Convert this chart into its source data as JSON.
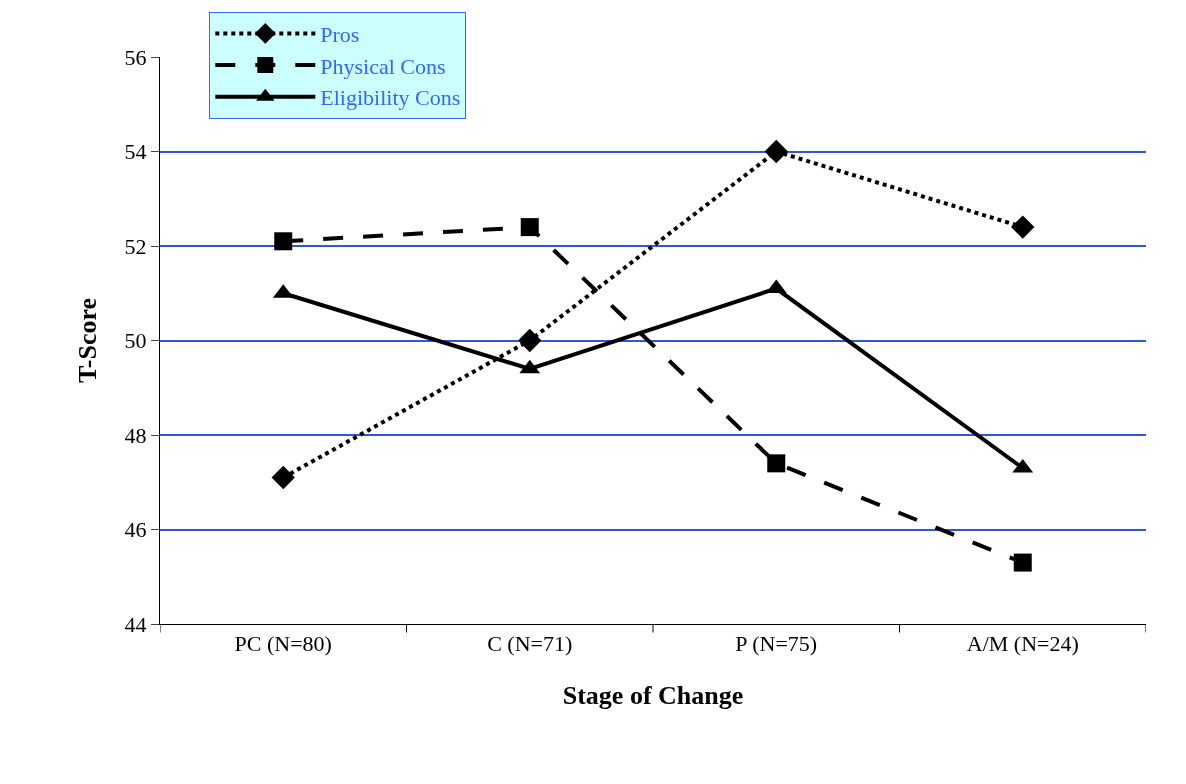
{
  "chart_data": {
    "type": "line",
    "xlabel": "Stage of Change",
    "ylabel": "T-Score",
    "categories": [
      "PC (N=80)",
      "C (N=71)",
      "P (N=75)",
      "A/M (N=24)"
    ],
    "series": [
      {
        "name": "Pros",
        "color": "#000000",
        "values": [
          47.1,
          50.0,
          54.0,
          52.4
        ],
        "marker": "diamond",
        "line_style": "dotted"
      },
      {
        "name": "Physical Cons",
        "color": "#000000",
        "values": [
          52.1,
          52.4,
          47.4,
          45.3
        ],
        "marker": "square",
        "line_style": "dashed"
      },
      {
        "name": "Eligibility Cons",
        "color": "#000000",
        "values": [
          51.0,
          49.4,
          51.1,
          47.3
        ],
        "marker": "triangle",
        "line_style": "solid"
      }
    ],
    "ylim": [
      44,
      56
    ],
    "yticks": [
      44,
      46,
      48,
      50,
      52,
      54,
      56
    ],
    "grid": "y",
    "legend": "top left"
  }
}
